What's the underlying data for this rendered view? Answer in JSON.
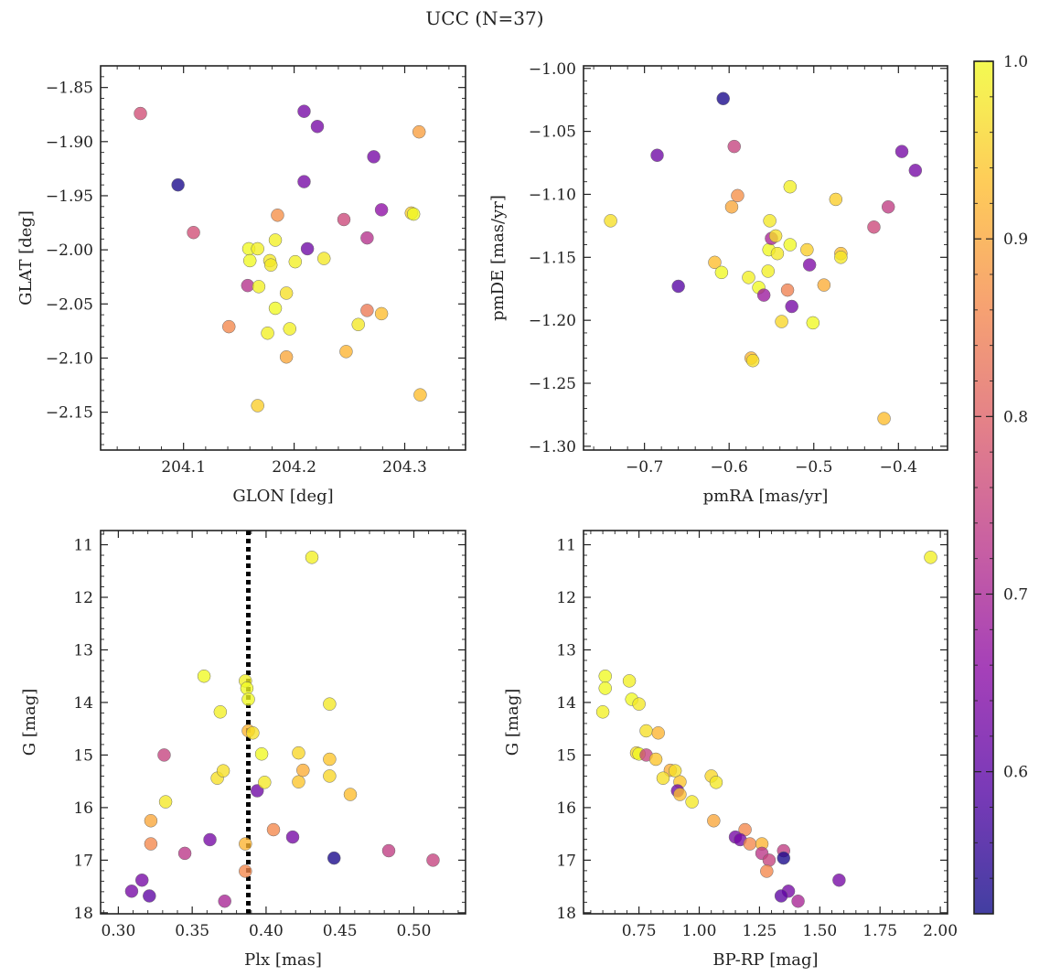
{
  "figure": {
    "title": "UCC (N=37)"
  },
  "colorbar": {
    "min": 0.52,
    "max": 1.0,
    "ticks": [
      0.6,
      0.7,
      0.8,
      0.9,
      1.0
    ],
    "tick_labels": [
      "0.6",
      "0.7",
      "0.8",
      "0.9",
      "1.0"
    ],
    "colormap": "plasma",
    "stops": [
      "#0d0887",
      "#5302a3",
      "#8b0aa5",
      "#b83289",
      "#db5c68",
      "#f48849",
      "#febd2a",
      "#f0f921"
    ],
    "alpha": 0.78
  },
  "chart_data": [
    {
      "type": "scatter",
      "title": "",
      "xlabel": "GLON [deg]",
      "ylabel": "GLAT [deg]",
      "xlim": [
        204.025,
        204.355
      ],
      "ylim": [
        -2.185,
        -1.83
      ],
      "y_inverted": false,
      "xticks": [
        204.1,
        204.2,
        204.3
      ],
      "xtick_labels": [
        "204.1",
        "204.2",
        "204.3"
      ],
      "yticks": [
        -1.85,
        -1.9,
        -1.95,
        -2.0,
        -2.05,
        -2.1,
        -2.15
      ],
      "ytick_labels": [
        "−1.85",
        "−1.90",
        "−1.95",
        "−2.00",
        "−2.05",
        "−2.10",
        "−2.15"
      ],
      "x_minor": 0.02,
      "y_minor": 0.01,
      "vline": null,
      "points": [
        {
          "x": 204.061,
          "y": -1.874,
          "c": 0.77
        },
        {
          "x": 204.095,
          "y": -1.94,
          "c": 0.53
        },
        {
          "x": 204.109,
          "y": -1.984,
          "c": 0.77
        },
        {
          "x": 204.141,
          "y": -2.071,
          "c": 0.86
        },
        {
          "x": 204.158,
          "y": -2.033,
          "c": 0.72
        },
        {
          "x": 204.159,
          "y": -1.999,
          "c": 1.0
        },
        {
          "x": 204.16,
          "y": -2.01,
          "c": 1.0
        },
        {
          "x": 204.167,
          "y": -1.999,
          "c": 0.99
        },
        {
          "x": 204.168,
          "y": -2.034,
          "c": 0.99
        },
        {
          "x": 204.167,
          "y": -2.144,
          "c": 0.95
        },
        {
          "x": 204.176,
          "y": -2.077,
          "c": 0.99
        },
        {
          "x": 204.178,
          "y": -2.01,
          "c": 0.98
        },
        {
          "x": 204.179,
          "y": -2.014,
          "c": 0.98
        },
        {
          "x": 204.183,
          "y": -1.991,
          "c": 0.99
        },
        {
          "x": 204.183,
          "y": -2.054,
          "c": 1.0
        },
        {
          "x": 204.185,
          "y": -1.968,
          "c": 0.87
        },
        {
          "x": 204.193,
          "y": -2.04,
          "c": 0.97
        },
        {
          "x": 204.193,
          "y": -2.099,
          "c": 0.9
        },
        {
          "x": 204.196,
          "y": -2.073,
          "c": 0.99
        },
        {
          "x": 204.201,
          "y": -2.011,
          "c": 0.99
        },
        {
          "x": 204.209,
          "y": -1.872,
          "c": 0.63
        },
        {
          "x": 204.209,
          "y": -1.937,
          "c": 0.63
        },
        {
          "x": 204.212,
          "y": -1.999,
          "c": 0.62
        },
        {
          "x": 204.221,
          "y": -1.886,
          "c": 0.63
        },
        {
          "x": 204.227,
          "y": -2.008,
          "c": 0.98
        },
        {
          "x": 204.245,
          "y": -1.972,
          "c": 0.76
        },
        {
          "x": 204.247,
          "y": -2.094,
          "c": 0.92
        },
        {
          "x": 204.258,
          "y": -2.069,
          "c": 0.98
        },
        {
          "x": 204.266,
          "y": -1.989,
          "c": 0.72
        },
        {
          "x": 204.266,
          "y": -2.056,
          "c": 0.84
        },
        {
          "x": 204.272,
          "y": -1.914,
          "c": 0.63
        },
        {
          "x": 204.279,
          "y": -1.963,
          "c": 0.66
        },
        {
          "x": 204.279,
          "y": -2.059,
          "c": 0.93
        },
        {
          "x": 204.306,
          "y": -1.966,
          "c": 0.95
        },
        {
          "x": 204.308,
          "y": -1.967,
          "c": 1.0
        },
        {
          "x": 204.313,
          "y": -1.891,
          "c": 0.89
        },
        {
          "x": 204.314,
          "y": -2.134,
          "c": 0.93
        }
      ]
    },
    {
      "type": "scatter",
      "title": "",
      "xlabel": "pmRA [mas/yr]",
      "ylabel": "pmDE [mas/yr]",
      "xlim": [
        -0.772,
        -0.342
      ],
      "ylim": [
        -1.303,
        -0.998
      ],
      "y_inverted": false,
      "xticks": [
        -0.7,
        -0.6,
        -0.5,
        -0.4
      ],
      "xtick_labels": [
        "−0.7",
        "−0.6",
        "−0.5",
        "−0.4"
      ],
      "yticks": [
        -1.0,
        -1.05,
        -1.1,
        -1.15,
        -1.2,
        -1.25,
        -1.3
      ],
      "ytick_labels": [
        "−1.00",
        "−1.05",
        "−1.10",
        "−1.15",
        "−1.20",
        "−1.25",
        "−1.30"
      ],
      "x_minor": 0.02,
      "y_minor": 0.01,
      "vline": null,
      "points": [
        {
          "x": -0.74,
          "y": -1.121,
          "c": 0.97
        },
        {
          "x": -0.685,
          "y": -1.069,
          "c": 0.62
        },
        {
          "x": -0.66,
          "y": -1.173,
          "c": 0.59
        },
        {
          "x": -0.617,
          "y": -1.154,
          "c": 0.93
        },
        {
          "x": -0.609,
          "y": -1.162,
          "c": 1.0
        },
        {
          "x": -0.607,
          "y": -1.024,
          "c": 0.53
        },
        {
          "x": -0.597,
          "y": -1.11,
          "c": 0.9
        },
        {
          "x": -0.594,
          "y": -1.062,
          "c": 0.75
        },
        {
          "x": -0.59,
          "y": -1.101,
          "c": 0.87
        },
        {
          "x": -0.577,
          "y": -1.166,
          "c": 0.99
        },
        {
          "x": -0.574,
          "y": -1.23,
          "c": 0.92
        },
        {
          "x": -0.572,
          "y": -1.232,
          "c": 0.97
        },
        {
          "x": -0.565,
          "y": -1.174,
          "c": 1.0
        },
        {
          "x": -0.559,
          "y": -1.18,
          "c": 0.68
        },
        {
          "x": -0.554,
          "y": -1.161,
          "c": 0.99
        },
        {
          "x": -0.553,
          "y": -1.144,
          "c": 1.0
        },
        {
          "x": -0.552,
          "y": -1.121,
          "c": 0.98
        },
        {
          "x": -0.55,
          "y": -1.135,
          "c": 0.7
        },
        {
          "x": -0.545,
          "y": -1.133,
          "c": 0.97
        },
        {
          "x": -0.543,
          "y": -1.147,
          "c": 0.98
        },
        {
          "x": -0.538,
          "y": -1.201,
          "c": 0.96
        },
        {
          "x": -0.531,
          "y": -1.176,
          "c": 0.85
        },
        {
          "x": -0.528,
          "y": -1.094,
          "c": 0.99
        },
        {
          "x": -0.528,
          "y": -1.14,
          "c": 1.0
        },
        {
          "x": -0.526,
          "y": -1.189,
          "c": 0.63
        },
        {
          "x": -0.508,
          "y": -1.144,
          "c": 0.95
        },
        {
          "x": -0.505,
          "y": -1.156,
          "c": 0.64
        },
        {
          "x": -0.501,
          "y": -1.202,
          "c": 1.0
        },
        {
          "x": -0.488,
          "y": -1.172,
          "c": 0.91
        },
        {
          "x": -0.474,
          "y": -1.104,
          "c": 0.95
        },
        {
          "x": -0.468,
          "y": -1.147,
          "c": 0.93
        },
        {
          "x": -0.468,
          "y": -1.15,
          "c": 0.98
        },
        {
          "x": -0.429,
          "y": -1.126,
          "c": 0.76
        },
        {
          "x": -0.417,
          "y": -1.278,
          "c": 0.93
        },
        {
          "x": -0.412,
          "y": -1.11,
          "c": 0.74
        },
        {
          "x": -0.396,
          "y": -1.066,
          "c": 0.63
        },
        {
          "x": -0.38,
          "y": -1.081,
          "c": 0.63
        }
      ]
    },
    {
      "type": "scatter",
      "title": "",
      "xlabel": "Plx [mas]",
      "ylabel": "G [mag]",
      "xlim": [
        0.288,
        0.535
      ],
      "ylim": [
        18.02,
        10.73
      ],
      "y_inverted": true,
      "xticks": [
        0.3,
        0.35,
        0.4,
        0.45,
        0.5
      ],
      "xtick_labels": [
        "0.30",
        "0.35",
        "0.40",
        "0.45",
        "0.50"
      ],
      "yticks": [
        11,
        12,
        13,
        14,
        15,
        16,
        17,
        18
      ],
      "ytick_labels": [
        "11",
        "12",
        "13",
        "14",
        "15",
        "16",
        "17",
        "18"
      ],
      "x_minor": 0.01,
      "y_minor": 0.2,
      "vline": 0.388,
      "points": [
        {
          "x": 0.309,
          "y": 17.59,
          "c": 0.63
        },
        {
          "x": 0.316,
          "y": 17.38,
          "c": 0.63
        },
        {
          "x": 0.321,
          "y": 17.68,
          "c": 0.6
        },
        {
          "x": 0.322,
          "y": 16.25,
          "c": 0.9
        },
        {
          "x": 0.322,
          "y": 16.69,
          "c": 0.86
        },
        {
          "x": 0.331,
          "y": 15.0,
          "c": 0.75
        },
        {
          "x": 0.332,
          "y": 15.89,
          "c": 0.98
        },
        {
          "x": 0.345,
          "y": 16.87,
          "c": 0.73
        },
        {
          "x": 0.358,
          "y": 13.5,
          "c": 1.0
        },
        {
          "x": 0.362,
          "y": 16.61,
          "c": 0.63
        },
        {
          "x": 0.367,
          "y": 15.44,
          "c": 0.97
        },
        {
          "x": 0.369,
          "y": 14.18,
          "c": 0.99
        },
        {
          "x": 0.371,
          "y": 15.3,
          "c": 0.97
        },
        {
          "x": 0.372,
          "y": 17.78,
          "c": 0.7
        },
        {
          "x": 0.386,
          "y": 13.59,
          "c": 0.99
        },
        {
          "x": 0.386,
          "y": 16.69,
          "c": 0.92
        },
        {
          "x": 0.386,
          "y": 17.21,
          "c": 0.86
        },
        {
          "x": 0.387,
          "y": 13.73,
          "c": 1.0
        },
        {
          "x": 0.388,
          "y": 13.94,
          "c": 1.0
        },
        {
          "x": 0.388,
          "y": 14.54,
          "c": 0.92
        },
        {
          "x": 0.391,
          "y": 14.58,
          "c": 0.97
        },
        {
          "x": 0.394,
          "y": 15.68,
          "c": 0.62
        },
        {
          "x": 0.397,
          "y": 14.98,
          "c": 1.0
        },
        {
          "x": 0.399,
          "y": 15.52,
          "c": 0.98
        },
        {
          "x": 0.405,
          "y": 16.42,
          "c": 0.86
        },
        {
          "x": 0.418,
          "y": 16.56,
          "c": 0.63
        },
        {
          "x": 0.422,
          "y": 14.96,
          "c": 0.96
        },
        {
          "x": 0.422,
          "y": 15.51,
          "c": 0.94
        },
        {
          "x": 0.425,
          "y": 15.29,
          "c": 0.91
        },
        {
          "x": 0.431,
          "y": 11.24,
          "c": 0.99
        },
        {
          "x": 0.443,
          "y": 14.03,
          "c": 0.98
        },
        {
          "x": 0.443,
          "y": 15.08,
          "c": 0.94
        },
        {
          "x": 0.443,
          "y": 15.4,
          "c": 0.96
        },
        {
          "x": 0.446,
          "y": 16.96,
          "c": 0.53
        },
        {
          "x": 0.457,
          "y": 15.75,
          "c": 0.93
        },
        {
          "x": 0.483,
          "y": 16.82,
          "c": 0.74
        },
        {
          "x": 0.513,
          "y": 17.0,
          "c": 0.75
        }
      ]
    },
    {
      "type": "scatter",
      "title": "",
      "xlabel": "BP-RP [mag]",
      "ylabel": "G [mag]",
      "xlim": [
        0.52,
        2.03
      ],
      "ylim": [
        18.02,
        10.73
      ],
      "y_inverted": true,
      "xticks": [
        0.75,
        1.0,
        1.25,
        1.5,
        1.75,
        2.0
      ],
      "xtick_labels": [
        "0.75",
        "1.00",
        "1.25",
        "1.50",
        "1.75",
        "2.00"
      ],
      "yticks": [
        11,
        12,
        13,
        14,
        15,
        16,
        17,
        18
      ],
      "ytick_labels": [
        "11",
        "12",
        "13",
        "14",
        "15",
        "16",
        "17",
        "18"
      ],
      "x_minor": 0.05,
      "y_minor": 0.2,
      "vline": null,
      "points": [
        {
          "x": 1.96,
          "y": 11.24,
          "c": 0.99
        },
        {
          "x": 0.61,
          "y": 13.5,
          "c": 1.0
        },
        {
          "x": 0.71,
          "y": 13.59,
          "c": 0.99
        },
        {
          "x": 0.61,
          "y": 13.73,
          "c": 1.0
        },
        {
          "x": 0.72,
          "y": 13.94,
          "c": 1.0
        },
        {
          "x": 0.75,
          "y": 14.03,
          "c": 0.98
        },
        {
          "x": 0.6,
          "y": 14.18,
          "c": 0.99
        },
        {
          "x": 0.78,
          "y": 14.54,
          "c": 0.97
        },
        {
          "x": 0.83,
          "y": 14.58,
          "c": 0.92
        },
        {
          "x": 0.74,
          "y": 14.96,
          "c": 0.96
        },
        {
          "x": 0.75,
          "y": 14.98,
          "c": 1.0
        },
        {
          "x": 0.78,
          "y": 15.0,
          "c": 0.75
        },
        {
          "x": 0.82,
          "y": 15.08,
          "c": 0.94
        },
        {
          "x": 0.88,
          "y": 15.29,
          "c": 0.91
        },
        {
          "x": 0.9,
          "y": 15.3,
          "c": 0.97
        },
        {
          "x": 1.05,
          "y": 15.4,
          "c": 0.96
        },
        {
          "x": 0.85,
          "y": 15.44,
          "c": 0.97
        },
        {
          "x": 0.92,
          "y": 15.51,
          "c": 0.94
        },
        {
          "x": 1.07,
          "y": 15.52,
          "c": 0.98
        },
        {
          "x": 0.91,
          "y": 15.68,
          "c": 0.62
        },
        {
          "x": 0.92,
          "y": 15.75,
          "c": 0.93
        },
        {
          "x": 0.97,
          "y": 15.89,
          "c": 0.98
        },
        {
          "x": 1.06,
          "y": 16.25,
          "c": 0.9
        },
        {
          "x": 1.19,
          "y": 16.42,
          "c": 0.86
        },
        {
          "x": 1.15,
          "y": 16.56,
          "c": 0.63
        },
        {
          "x": 1.17,
          "y": 16.61,
          "c": 0.63
        },
        {
          "x": 1.21,
          "y": 16.69,
          "c": 0.86
        },
        {
          "x": 1.26,
          "y": 16.69,
          "c": 0.92
        },
        {
          "x": 1.35,
          "y": 16.82,
          "c": 0.74
        },
        {
          "x": 1.26,
          "y": 16.87,
          "c": 0.73
        },
        {
          "x": 1.35,
          "y": 16.96,
          "c": 0.53
        },
        {
          "x": 1.29,
          "y": 17.0,
          "c": 0.75
        },
        {
          "x": 1.28,
          "y": 17.21,
          "c": 0.86
        },
        {
          "x": 1.58,
          "y": 17.38,
          "c": 0.63
        },
        {
          "x": 1.37,
          "y": 17.59,
          "c": 0.63
        },
        {
          "x": 1.34,
          "y": 17.68,
          "c": 0.6
        },
        {
          "x": 1.41,
          "y": 17.78,
          "c": 0.7
        }
      ]
    }
  ]
}
